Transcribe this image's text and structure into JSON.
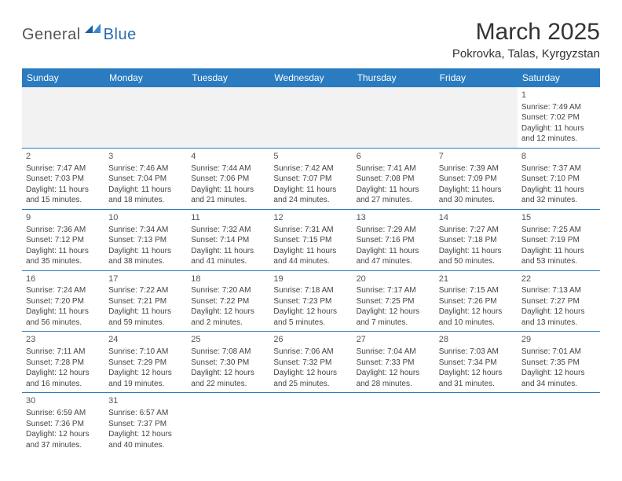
{
  "logo": {
    "general": "General",
    "blue": "Blue"
  },
  "title": "March 2025",
  "location": "Pokrovka, Talas, Kyrgyzstan",
  "colors": {
    "header_bg": "#2a7bbf",
    "header_fg": "#ffffff",
    "border": "#2a7bbf",
    "blank_bg": "#f2f2f2"
  },
  "weekdays": [
    "Sunday",
    "Monday",
    "Tuesday",
    "Wednesday",
    "Thursday",
    "Friday",
    "Saturday"
  ],
  "weeks": [
    [
      {
        "blank": true
      },
      {
        "blank": true
      },
      {
        "blank": true
      },
      {
        "blank": true
      },
      {
        "blank": true
      },
      {
        "blank": true
      },
      {
        "day": "1",
        "sunrise": "Sunrise: 7:49 AM",
        "sunset": "Sunset: 7:02 PM",
        "daylight": "Daylight: 11 hours and 12 minutes."
      }
    ],
    [
      {
        "day": "2",
        "sunrise": "Sunrise: 7:47 AM",
        "sunset": "Sunset: 7:03 PM",
        "daylight": "Daylight: 11 hours and 15 minutes."
      },
      {
        "day": "3",
        "sunrise": "Sunrise: 7:46 AM",
        "sunset": "Sunset: 7:04 PM",
        "daylight": "Daylight: 11 hours and 18 minutes."
      },
      {
        "day": "4",
        "sunrise": "Sunrise: 7:44 AM",
        "sunset": "Sunset: 7:06 PM",
        "daylight": "Daylight: 11 hours and 21 minutes."
      },
      {
        "day": "5",
        "sunrise": "Sunrise: 7:42 AM",
        "sunset": "Sunset: 7:07 PM",
        "daylight": "Daylight: 11 hours and 24 minutes."
      },
      {
        "day": "6",
        "sunrise": "Sunrise: 7:41 AM",
        "sunset": "Sunset: 7:08 PM",
        "daylight": "Daylight: 11 hours and 27 minutes."
      },
      {
        "day": "7",
        "sunrise": "Sunrise: 7:39 AM",
        "sunset": "Sunset: 7:09 PM",
        "daylight": "Daylight: 11 hours and 30 minutes."
      },
      {
        "day": "8",
        "sunrise": "Sunrise: 7:37 AM",
        "sunset": "Sunset: 7:10 PM",
        "daylight": "Daylight: 11 hours and 32 minutes."
      }
    ],
    [
      {
        "day": "9",
        "sunrise": "Sunrise: 7:36 AM",
        "sunset": "Sunset: 7:12 PM",
        "daylight": "Daylight: 11 hours and 35 minutes."
      },
      {
        "day": "10",
        "sunrise": "Sunrise: 7:34 AM",
        "sunset": "Sunset: 7:13 PM",
        "daylight": "Daylight: 11 hours and 38 minutes."
      },
      {
        "day": "11",
        "sunrise": "Sunrise: 7:32 AM",
        "sunset": "Sunset: 7:14 PM",
        "daylight": "Daylight: 11 hours and 41 minutes."
      },
      {
        "day": "12",
        "sunrise": "Sunrise: 7:31 AM",
        "sunset": "Sunset: 7:15 PM",
        "daylight": "Daylight: 11 hours and 44 minutes."
      },
      {
        "day": "13",
        "sunrise": "Sunrise: 7:29 AM",
        "sunset": "Sunset: 7:16 PM",
        "daylight": "Daylight: 11 hours and 47 minutes."
      },
      {
        "day": "14",
        "sunrise": "Sunrise: 7:27 AM",
        "sunset": "Sunset: 7:18 PM",
        "daylight": "Daylight: 11 hours and 50 minutes."
      },
      {
        "day": "15",
        "sunrise": "Sunrise: 7:25 AM",
        "sunset": "Sunset: 7:19 PM",
        "daylight": "Daylight: 11 hours and 53 minutes."
      }
    ],
    [
      {
        "day": "16",
        "sunrise": "Sunrise: 7:24 AM",
        "sunset": "Sunset: 7:20 PM",
        "daylight": "Daylight: 11 hours and 56 minutes."
      },
      {
        "day": "17",
        "sunrise": "Sunrise: 7:22 AM",
        "sunset": "Sunset: 7:21 PM",
        "daylight": "Daylight: 11 hours and 59 minutes."
      },
      {
        "day": "18",
        "sunrise": "Sunrise: 7:20 AM",
        "sunset": "Sunset: 7:22 PM",
        "daylight": "Daylight: 12 hours and 2 minutes."
      },
      {
        "day": "19",
        "sunrise": "Sunrise: 7:18 AM",
        "sunset": "Sunset: 7:23 PM",
        "daylight": "Daylight: 12 hours and 5 minutes."
      },
      {
        "day": "20",
        "sunrise": "Sunrise: 7:17 AM",
        "sunset": "Sunset: 7:25 PM",
        "daylight": "Daylight: 12 hours and 7 minutes."
      },
      {
        "day": "21",
        "sunrise": "Sunrise: 7:15 AM",
        "sunset": "Sunset: 7:26 PM",
        "daylight": "Daylight: 12 hours and 10 minutes."
      },
      {
        "day": "22",
        "sunrise": "Sunrise: 7:13 AM",
        "sunset": "Sunset: 7:27 PM",
        "daylight": "Daylight: 12 hours and 13 minutes."
      }
    ],
    [
      {
        "day": "23",
        "sunrise": "Sunrise: 7:11 AM",
        "sunset": "Sunset: 7:28 PM",
        "daylight": "Daylight: 12 hours and 16 minutes."
      },
      {
        "day": "24",
        "sunrise": "Sunrise: 7:10 AM",
        "sunset": "Sunset: 7:29 PM",
        "daylight": "Daylight: 12 hours and 19 minutes."
      },
      {
        "day": "25",
        "sunrise": "Sunrise: 7:08 AM",
        "sunset": "Sunset: 7:30 PM",
        "daylight": "Daylight: 12 hours and 22 minutes."
      },
      {
        "day": "26",
        "sunrise": "Sunrise: 7:06 AM",
        "sunset": "Sunset: 7:32 PM",
        "daylight": "Daylight: 12 hours and 25 minutes."
      },
      {
        "day": "27",
        "sunrise": "Sunrise: 7:04 AM",
        "sunset": "Sunset: 7:33 PM",
        "daylight": "Daylight: 12 hours and 28 minutes."
      },
      {
        "day": "28",
        "sunrise": "Sunrise: 7:03 AM",
        "sunset": "Sunset: 7:34 PM",
        "daylight": "Daylight: 12 hours and 31 minutes."
      },
      {
        "day": "29",
        "sunrise": "Sunrise: 7:01 AM",
        "sunset": "Sunset: 7:35 PM",
        "daylight": "Daylight: 12 hours and 34 minutes."
      }
    ],
    [
      {
        "day": "30",
        "sunrise": "Sunrise: 6:59 AM",
        "sunset": "Sunset: 7:36 PM",
        "daylight": "Daylight: 12 hours and 37 minutes."
      },
      {
        "day": "31",
        "sunrise": "Sunrise: 6:57 AM",
        "sunset": "Sunset: 7:37 PM",
        "daylight": "Daylight: 12 hours and 40 minutes."
      },
      {
        "empty_after": true
      },
      {
        "empty_after": true
      },
      {
        "empty_after": true
      },
      {
        "empty_after": true
      },
      {
        "empty_after": true
      }
    ]
  ]
}
